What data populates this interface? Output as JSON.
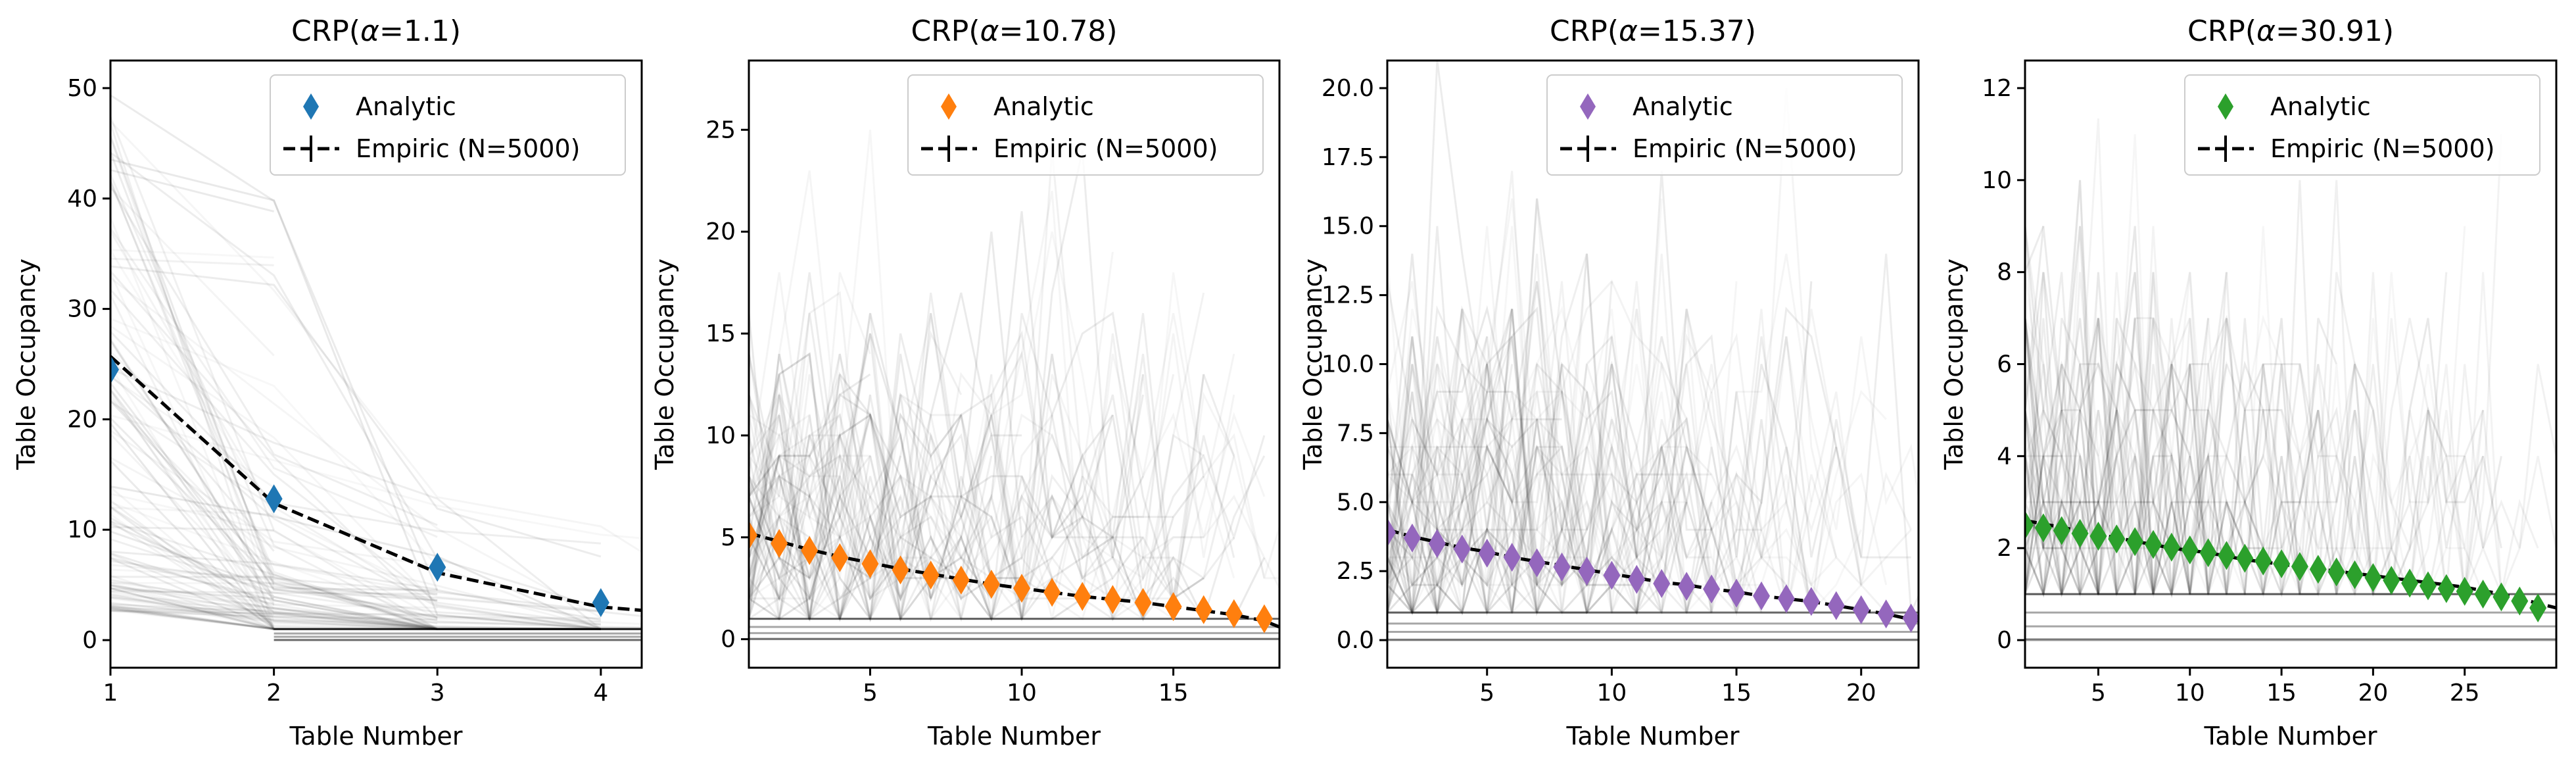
{
  "colors": {
    "background": "#ffffff",
    "empiric_line": "#000000",
    "trace_line": "#000000"
  },
  "legend_labels": {
    "analytic": "Analytic",
    "empiric": "Empiric (N=5000)"
  },
  "chart_data": [
    {
      "type": "line",
      "title": "CRP(α=1.1)",
      "title_parts": {
        "pre": "CRP(",
        "alpha": "α",
        "post": "=1.1)"
      },
      "xlabel": "Table Number",
      "ylabel": "Table Occupancy",
      "xlim": [
        1,
        4.25
      ],
      "ylim": [
        -2.5,
        52.5
      ],
      "xticks": [
        1,
        2,
        3,
        4
      ],
      "yticks": [
        0,
        10,
        20,
        30,
        40,
        50
      ],
      "legend_position": "upper right",
      "analytic_color": "#1f77b4",
      "series": [
        {
          "name": "Analytic",
          "style": "diamond-markers",
          "x": [
            1,
            2,
            3,
            4
          ],
          "y": [
            24.5,
            12.8,
            6.6,
            3.4
          ]
        },
        {
          "name": "Empiric (N=5000)",
          "style": "dashed-line",
          "x": [
            1,
            2,
            3,
            4,
            4.25
          ],
          "y": [
            25.7,
            12.4,
            6.1,
            3.0,
            2.7
          ]
        }
      ],
      "traces_note": "faint grey sample paths from individual simulations"
    },
    {
      "type": "line",
      "title": "CRP(α=10.78)",
      "title_parts": {
        "pre": "CRP(",
        "alpha": "α",
        "post": "=10.78)"
      },
      "xlabel": "Table Number",
      "ylabel": "Table Occupancy",
      "xlim": [
        1,
        18.5
      ],
      "ylim": [
        -1.4,
        28.4
      ],
      "xticks": [
        5,
        10,
        15
      ],
      "yticks": [
        0,
        5,
        10,
        15,
        20,
        25
      ],
      "legend_position": "upper right",
      "analytic_color": "#ff7f0e",
      "series": [
        {
          "name": "Analytic",
          "style": "diamond-markers",
          "x": [
            1,
            2,
            3,
            4,
            5,
            6,
            7,
            8,
            9,
            10,
            11,
            12,
            13,
            14,
            15,
            16,
            17,
            18
          ],
          "y": [
            5.1,
            4.7,
            4.35,
            4.0,
            3.7,
            3.4,
            3.15,
            2.9,
            2.7,
            2.5,
            2.3,
            2.1,
            1.95,
            1.8,
            1.6,
            1.45,
            1.25,
            1.0
          ]
        },
        {
          "name": "Empiric (N=5000)",
          "style": "dashed-line",
          "x": [
            1,
            2,
            3,
            4,
            5,
            6,
            7,
            8,
            9,
            10,
            11,
            12,
            13,
            14,
            15,
            16,
            17,
            18,
            18.5
          ],
          "y": [
            5.2,
            4.8,
            4.4,
            4.05,
            3.75,
            3.45,
            3.2,
            2.95,
            2.7,
            2.5,
            2.3,
            2.1,
            1.95,
            1.8,
            1.6,
            1.4,
            1.2,
            0.9,
            0.6
          ]
        }
      ],
      "traces_note": "faint grey sample paths from individual simulations"
    },
    {
      "type": "line",
      "title": "CRP(α=15.37)",
      "title_parts": {
        "pre": "CRP(",
        "alpha": "α",
        "post": "=15.37)"
      },
      "xlabel": "Table Number",
      "ylabel": "Table Occupancy",
      "xlim": [
        1,
        22.3
      ],
      "ylim": [
        -1.0,
        21.0
      ],
      "xticks": [
        5,
        10,
        15,
        20
      ],
      "yticks": [
        0.0,
        2.5,
        5.0,
        7.5,
        10.0,
        12.5,
        15.0,
        17.5,
        20.0
      ],
      "ytick_labels": [
        "0.0",
        "2.5",
        "5.0",
        "7.5",
        "10.0",
        "12.5",
        "15.0",
        "17.5",
        "20.0"
      ],
      "legend_position": "upper right",
      "analytic_color": "#9467bd",
      "series": [
        {
          "name": "Analytic",
          "style": "diamond-markers",
          "x": [
            1,
            2,
            3,
            4,
            5,
            6,
            7,
            8,
            9,
            10,
            11,
            12,
            13,
            14,
            15,
            16,
            17,
            18,
            19,
            20,
            21,
            22
          ],
          "y": [
            3.9,
            3.7,
            3.5,
            3.3,
            3.15,
            3.0,
            2.8,
            2.65,
            2.5,
            2.35,
            2.2,
            2.05,
            1.95,
            1.85,
            1.7,
            1.6,
            1.5,
            1.4,
            1.25,
            1.1,
            0.95,
            0.8
          ]
        },
        {
          "name": "Empiric (N=5000)",
          "style": "dashed-line",
          "x": [
            1,
            2,
            3,
            4,
            5,
            6,
            7,
            8,
            9,
            10,
            11,
            12,
            13,
            14,
            15,
            16,
            17,
            18,
            19,
            20,
            21,
            22,
            22.3
          ],
          "y": [
            4.0,
            3.75,
            3.55,
            3.35,
            3.2,
            3.0,
            2.85,
            2.7,
            2.55,
            2.4,
            2.25,
            2.1,
            2.0,
            1.85,
            1.75,
            1.6,
            1.5,
            1.4,
            1.25,
            1.1,
            0.95,
            0.75,
            0.7
          ]
        }
      ],
      "traces_note": "faint grey sample paths from individual simulations"
    },
    {
      "type": "line",
      "title": "CRP(α=30.91)",
      "title_parts": {
        "pre": "CRP(",
        "alpha": "α",
        "post": "=30.91)"
      },
      "xlabel": "Table Number",
      "ylabel": "Table Occupancy",
      "xlim": [
        1,
        30
      ],
      "ylim": [
        -0.6,
        12.6
      ],
      "xticks": [
        5,
        10,
        15,
        20,
        25
      ],
      "yticks": [
        0,
        2,
        4,
        6,
        8,
        10,
        12
      ],
      "legend_position": "upper right",
      "analytic_color": "#2ca02c",
      "series": [
        {
          "name": "Analytic",
          "style": "diamond-markers",
          "x": [
            1,
            2,
            3,
            4,
            5,
            6,
            7,
            8,
            9,
            10,
            11,
            12,
            13,
            14,
            15,
            16,
            17,
            18,
            19,
            20,
            21,
            22,
            23,
            24,
            25,
            26,
            27,
            28,
            29
          ],
          "y": [
            2.5,
            2.44,
            2.38,
            2.32,
            2.26,
            2.2,
            2.14,
            2.08,
            2.02,
            1.96,
            1.9,
            1.84,
            1.78,
            1.72,
            1.66,
            1.6,
            1.54,
            1.48,
            1.42,
            1.36,
            1.3,
            1.24,
            1.18,
            1.12,
            1.06,
            1.0,
            0.94,
            0.85,
            0.7
          ]
        },
        {
          "name": "Empiric (N=5000)",
          "style": "dashed-line",
          "x": [
            1,
            3,
            5,
            7,
            9,
            11,
            13,
            15,
            17,
            19,
            21,
            23,
            25,
            27,
            29,
            30
          ],
          "y": [
            2.6,
            2.45,
            2.3,
            2.15,
            2.0,
            1.9,
            1.75,
            1.65,
            1.55,
            1.45,
            1.35,
            1.25,
            1.15,
            1.0,
            0.8,
            0.7
          ]
        }
      ],
      "traces_note": "faint grey sample paths from individual simulations"
    }
  ]
}
